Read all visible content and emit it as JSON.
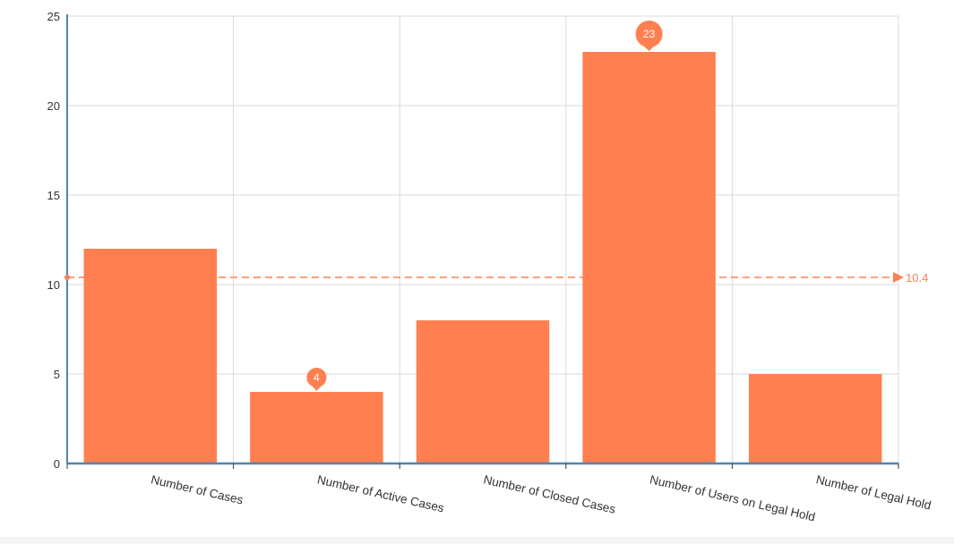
{
  "chart_data": {
    "type": "bar",
    "categories": [
      "Number of Cases",
      "Number of Active Cases",
      "Number of Closed Cases",
      "Number of Users on Legal Hold",
      "Number of Legal Hold"
    ],
    "values": [
      12,
      4,
      8,
      23,
      5
    ],
    "ylim": [
      0,
      25
    ],
    "yticks": [
      0,
      5,
      10,
      15,
      20,
      25
    ],
    "grid": true,
    "bar_color": "#ff7f50",
    "axis_color": "#4f86b0",
    "grid_color": "#d9d9d9",
    "marked_points": [
      {
        "category": "Number of Active Cases",
        "value": 4,
        "label": "4"
      },
      {
        "category": "Number of Users on Legal Hold",
        "value": 23,
        "label": "23"
      }
    ],
    "average_line": {
      "value": 10.4,
      "label": "10.4"
    }
  }
}
